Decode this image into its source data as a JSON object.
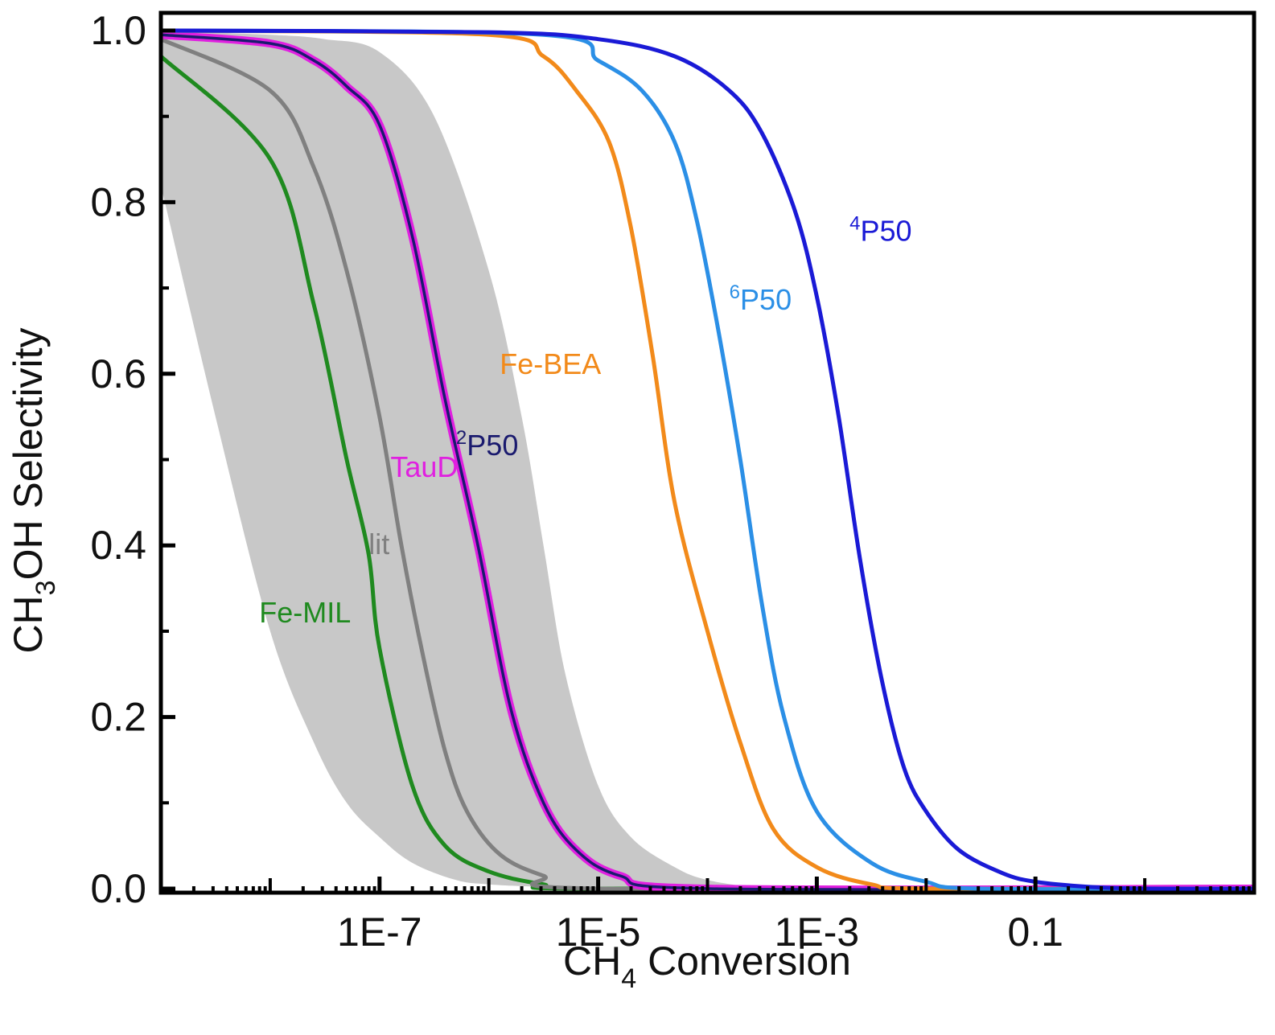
{
  "chart_data": {
    "type": "line",
    "xscale": "log",
    "xlim_log10": [
      -9,
      1
    ],
    "ylim": [
      0,
      1
    ],
    "xlabel": {
      "main": "CH",
      "sub": "4",
      "rest": " Conversion"
    },
    "ylabel": {
      "main": "CH",
      "sub": "3",
      "rest": "OH Selectivity"
    },
    "x_ticks": [
      {
        "label": "1E-7",
        "log10": -7
      },
      {
        "label": "1E-5",
        "log10": -5
      },
      {
        "label": "1E-3",
        "log10": -3
      },
      {
        "label": "0.1",
        "log10": -1
      }
    ],
    "y_ticks": [
      {
        "label": "0.0",
        "value": 0.0
      },
      {
        "label": "0.2",
        "value": 0.2
      },
      {
        "label": "0.4",
        "value": 0.4
      },
      {
        "label": "0.6",
        "value": 0.6
      },
      {
        "label": "0.8",
        "value": 0.8
      },
      {
        "label": "1.0",
        "value": 1.0
      }
    ],
    "band": {
      "name": "uncertainty range",
      "color": "#c8c8c8",
      "lower": [
        [
          -9,
          0.82
        ],
        [
          -8.5,
          0.55
        ],
        [
          -8,
          0.3
        ],
        [
          -7.6,
          0.17
        ],
        [
          -7.3,
          0.1
        ],
        [
          -7,
          0.06
        ],
        [
          -6.7,
          0.03
        ],
        [
          -6.3,
          0.01
        ],
        [
          -6,
          0.005
        ],
        [
          -5.5,
          0.002
        ],
        [
          -5,
          0.0005
        ],
        [
          -4,
          0
        ]
      ],
      "upper": [
        [
          -9,
          1.0
        ],
        [
          -8,
          0.995
        ],
        [
          -7.5,
          0.99
        ],
        [
          -7,
          0.975
        ],
        [
          -6.5,
          0.9
        ],
        [
          -6,
          0.72
        ],
        [
          -5.7,
          0.55
        ],
        [
          -5.5,
          0.4
        ],
        [
          -5.3,
          0.25
        ],
        [
          -5,
          0.12
        ],
        [
          -4.7,
          0.06
        ],
        [
          -4.3,
          0.025
        ],
        [
          -4,
          0.01
        ],
        [
          -3.5,
          0.0
        ]
      ]
    },
    "series": [
      {
        "name": "Fe-MIL",
        "label_text": "Fe-MIL",
        "color": "#1f8a1f",
        "points": [
          [
            -9,
            0.97
          ],
          [
            -8,
            0.85
          ],
          [
            -7.6,
            0.68
          ],
          [
            -7.3,
            0.5
          ],
          [
            -7.1,
            0.39
          ],
          [
            -7,
            0.28
          ],
          [
            -6.7,
            0.12
          ],
          [
            -6.4,
            0.05
          ],
          [
            -6,
            0.02
          ],
          [
            -5.5,
            0.005
          ],
          [
            -5,
            0.0
          ]
        ]
      },
      {
        "name": "lit",
        "label_text": "lit",
        "color": "#808080",
        "points": [
          [
            -9,
            0.99
          ],
          [
            -8,
            0.93
          ],
          [
            -7.6,
            0.84
          ],
          [
            -7.3,
            0.72
          ],
          [
            -7,
            0.55
          ],
          [
            -6.8,
            0.4
          ],
          [
            -6.6,
            0.27
          ],
          [
            -6.4,
            0.16
          ],
          [
            -6.2,
            0.09
          ],
          [
            -5.9,
            0.04
          ],
          [
            -5.5,
            0.015
          ],
          [
            -5,
            0.0
          ]
        ]
      },
      {
        "name": "TauD",
        "label_text": "TauD",
        "color": "#e020e0",
        "points": [
          [
            -9,
            0.995
          ],
          [
            -8,
            0.985
          ],
          [
            -7.6,
            0.965
          ],
          [
            -7.3,
            0.935
          ],
          [
            -7,
            0.89
          ],
          [
            -6.7,
            0.76
          ],
          [
            -6.4,
            0.57
          ],
          [
            -6.1,
            0.4
          ],
          [
            -5.8,
            0.21
          ],
          [
            -5.5,
            0.1
          ],
          [
            -5.2,
            0.045
          ],
          [
            -4.8,
            0.015
          ],
          [
            -4,
            0.0
          ]
        ]
      },
      {
        "name": "2P50",
        "label_text": "P50",
        "label_sup": "2",
        "color": "#1a1a6e",
        "points": [
          [
            -9,
            0.995
          ],
          [
            -8,
            0.985
          ],
          [
            -7.6,
            0.965
          ],
          [
            -7.3,
            0.935
          ],
          [
            -7,
            0.89
          ],
          [
            -6.7,
            0.76
          ],
          [
            -6.4,
            0.57
          ],
          [
            -6.1,
            0.4
          ],
          [
            -5.8,
            0.21
          ],
          [
            -5.5,
            0.1
          ],
          [
            -5.2,
            0.045
          ],
          [
            -4.8,
            0.015
          ],
          [
            -4,
            0.0
          ]
        ]
      },
      {
        "name": "Fe-BEA",
        "label_text": "Fe-BEA",
        "color": "#f28a1a",
        "points": [
          [
            -9,
            1.0
          ],
          [
            -6,
            0.995
          ],
          [
            -5.5,
            0.97
          ],
          [
            -5.2,
            0.93
          ],
          [
            -4.9,
            0.87
          ],
          [
            -4.7,
            0.77
          ],
          [
            -4.5,
            0.62
          ],
          [
            -4.3,
            0.45
          ],
          [
            -4,
            0.3
          ],
          [
            -3.7,
            0.17
          ],
          [
            -3.4,
            0.07
          ],
          [
            -3,
            0.025
          ],
          [
            -2.5,
            0.005
          ],
          [
            -2,
            0.0
          ]
        ]
      },
      {
        "name": "6P50",
        "label_text": "P50",
        "label_sup": "6",
        "color": "#2b8fe6",
        "points": [
          [
            -9,
            1.0
          ],
          [
            -5.5,
            0.995
          ],
          [
            -5,
            0.965
          ],
          [
            -4.6,
            0.93
          ],
          [
            -4.3,
            0.87
          ],
          [
            -4.1,
            0.78
          ],
          [
            -3.9,
            0.65
          ],
          [
            -3.7,
            0.5
          ],
          [
            -3.5,
            0.33
          ],
          [
            -3.3,
            0.2
          ],
          [
            -3,
            0.09
          ],
          [
            -2.5,
            0.03
          ],
          [
            -2,
            0.008
          ],
          [
            -1.5,
            0.0
          ]
        ]
      },
      {
        "name": "4P50",
        "label_text": "P50",
        "label_sup": "4",
        "color": "#1a1ad6",
        "points": [
          [
            -9,
            1.0
          ],
          [
            -6,
            0.998
          ],
          [
            -5,
            0.99
          ],
          [
            -4.3,
            0.97
          ],
          [
            -3.8,
            0.93
          ],
          [
            -3.5,
            0.88
          ],
          [
            -3.2,
            0.79
          ],
          [
            -3,
            0.69
          ],
          [
            -2.8,
            0.55
          ],
          [
            -2.6,
            0.38
          ],
          [
            -2.4,
            0.24
          ],
          [
            -2.2,
            0.14
          ],
          [
            -2,
            0.09
          ],
          [
            -1.7,
            0.045
          ],
          [
            -1.3,
            0.018
          ],
          [
            -1,
            0.008
          ],
          [
            -0.5,
            0.002
          ],
          [
            0,
            0.0
          ]
        ]
      }
    ],
    "annotations": [
      {
        "series": "Fe-MIL",
        "at": [
          -8.1,
          0.31
        ]
      },
      {
        "series": "lit",
        "at": [
          -7.1,
          0.39
        ]
      },
      {
        "series": "TauD",
        "at": [
          -6.9,
          0.48
        ]
      },
      {
        "series": "2P50",
        "at": [
          -6.3,
          0.505
        ]
      },
      {
        "series": "Fe-BEA",
        "at": [
          -5.9,
          0.6
        ]
      },
      {
        "series": "6P50",
        "at": [
          -3.8,
          0.675
        ]
      },
      {
        "series": "4P50",
        "at": [
          -2.7,
          0.755
        ]
      }
    ],
    "grid": false,
    "legend": "none"
  }
}
